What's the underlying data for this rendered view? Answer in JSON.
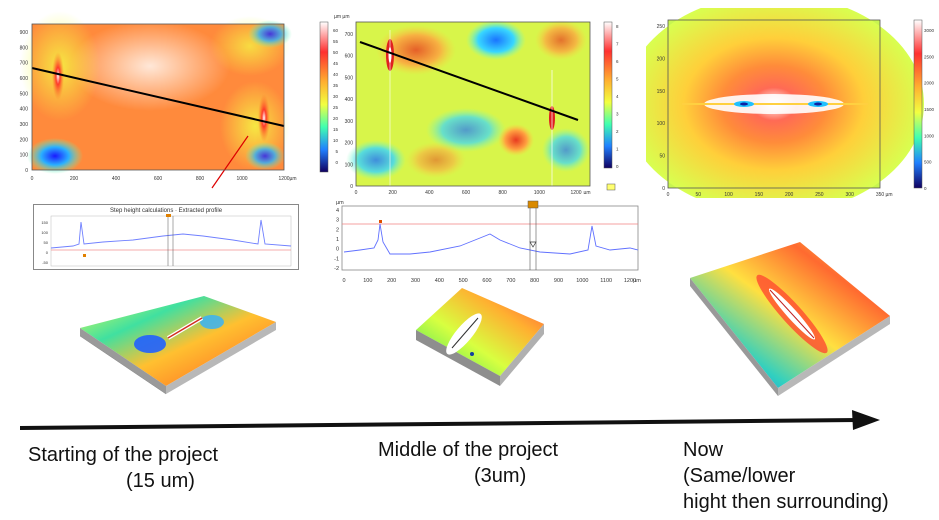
{
  "units": {
    "um": "µm",
    "um_um": "µm µm"
  },
  "map1": {
    "y_ticks": [
      "900",
      "800",
      "700",
      "600",
      "500",
      "400",
      "300",
      "200",
      "100",
      "0"
    ],
    "x_ticks": [
      "0",
      "200",
      "400",
      "600",
      "800",
      "1000",
      "1200"
    ]
  },
  "map2": {
    "y_ticks": [
      "700",
      "600",
      "500",
      "400",
      "300",
      "200",
      "100",
      "0"
    ],
    "x_ticks": [
      "0",
      "200",
      "400",
      "600",
      "800",
      "1000",
      "1200"
    ],
    "scale_ticks": [
      "60",
      "55",
      "50",
      "45",
      "40",
      "35",
      "30",
      "25",
      "20",
      "15",
      "10",
      "5",
      "0"
    ],
    "scale2_ticks": [
      "8",
      "7",
      "6",
      "5",
      "4",
      "3",
      "2",
      "1",
      "0"
    ]
  },
  "map3": {
    "y_ticks": [
      "250",
      "200",
      "150",
      "100",
      "50",
      "0"
    ],
    "x_ticks": [
      "0",
      "50",
      "100",
      "150",
      "200",
      "250",
      "300",
      "350"
    ],
    "scale_ticks": [
      "3000",
      "2500",
      "2000",
      "1500",
      "1000",
      "500",
      "0"
    ]
  },
  "profile1": {
    "title": "Step height calculations · Extracted profile",
    "y_ticks": [
      "150",
      "100",
      "50",
      "0",
      "-50"
    ]
  },
  "profile2": {
    "y_ticks": [
      "4",
      "3",
      "2",
      "1",
      "0",
      "-1",
      "-2"
    ],
    "x_ticks": [
      "0",
      "100",
      "200",
      "300",
      "400",
      "500",
      "600",
      "700",
      "800",
      "900",
      "1000",
      "1100",
      "1200"
    ]
  },
  "captions": {
    "start_line1": "Starting of the project",
    "start_line2": "(15 um)",
    "middle_line1": "Middle of the project",
    "middle_line2": "(3um)",
    "now_line1": "Now",
    "now_line2": "(Same/lower",
    "now_line3": "hight then surrounding)"
  }
}
